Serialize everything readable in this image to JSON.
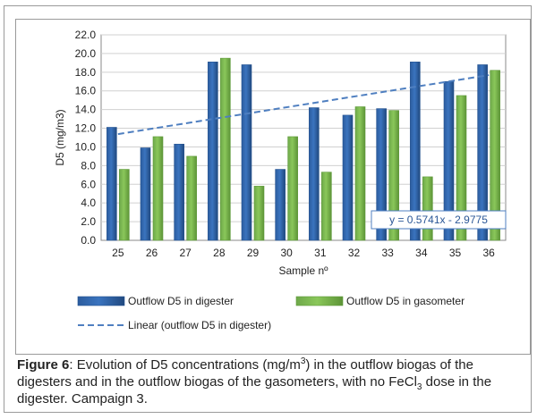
{
  "chart_data": {
    "type": "bar",
    "title": "",
    "xlabel": "Sample nº",
    "ylabel": "D5 (mg/m3)",
    "ylim": [
      0,
      22
    ],
    "yticks": [
      "0.0",
      "2.0",
      "4.0",
      "6.0",
      "8.0",
      "10.0",
      "12.0",
      "14.0",
      "16.0",
      "18.0",
      "20.0",
      "22.0"
    ],
    "categories": [
      "25",
      "26",
      "27",
      "28",
      "29",
      "30",
      "31",
      "32",
      "33",
      "34",
      "35",
      "36"
    ],
    "series": [
      {
        "name": "Outflow D5 in digester",
        "values": [
          12.1,
          9.9,
          10.3,
          19.1,
          18.8,
          7.6,
          14.2,
          13.4,
          14.1,
          19.1,
          17.0,
          18.8
        ]
      },
      {
        "name": "Outflow D5 in gasometer",
        "values": [
          7.6,
          11.1,
          9.0,
          19.5,
          5.8,
          11.1,
          7.3,
          14.3,
          13.9,
          6.8,
          15.5,
          18.2
        ]
      }
    ],
    "trendline": {
      "name": "Linear (outflow D5 in digester)",
      "equation": "y = 0.5741x - 2.9775",
      "slope": 0.5741,
      "intercept": -2.9775
    },
    "grid": true,
    "legend_position": "bottom",
    "colors": {
      "digester": "#3a74bf",
      "gasometer": "#8ac75a",
      "trend": "#4f7fc0"
    }
  },
  "caption": {
    "label": "Figure 6",
    "text_1": ": Evolution of D5 concentrations (mg/m",
    "sup_3": "3",
    "text_2": ") in the outflow biogas of the digesters and in the outflow biogas of the gasometers, with no FeCl",
    "sub_3": "3",
    "text_3": " dose in the digester. Campaign 3."
  }
}
